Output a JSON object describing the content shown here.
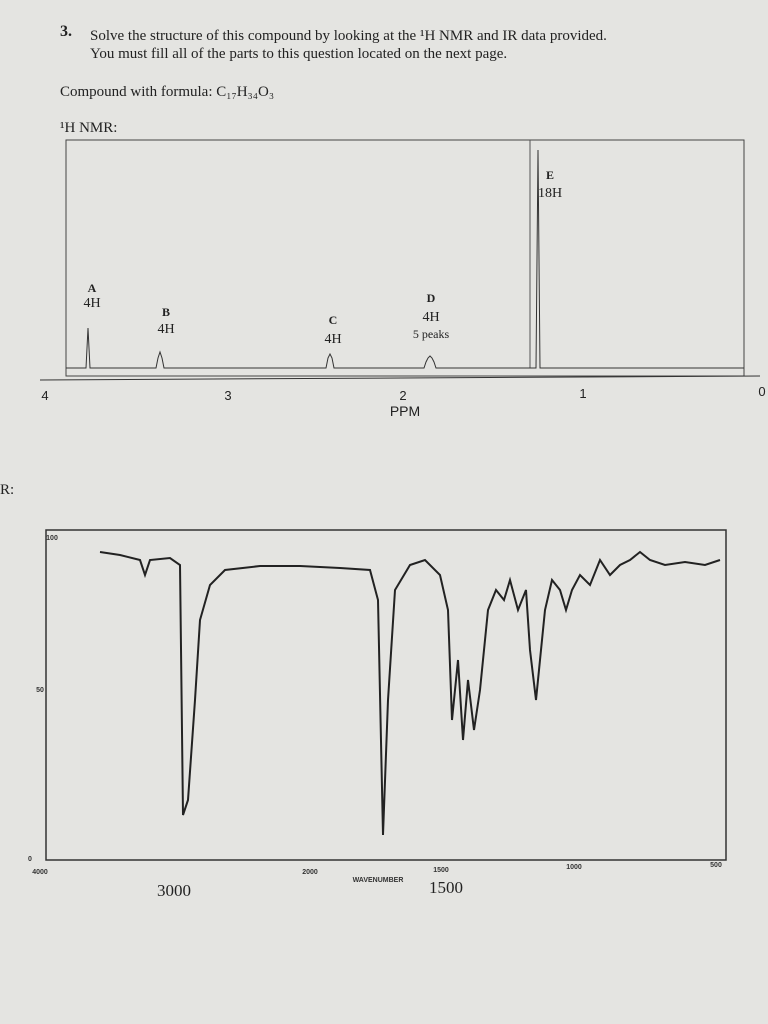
{
  "question": {
    "number": "3.",
    "lines": [
      "Solve the structure of this compound by looking at the ¹H NMR and IR data provided.",
      "You must fill all of the parts to this question located on the next page."
    ],
    "formula": "Compound with formula: C₁₇H₃₄O₃"
  },
  "nmr": {
    "title": "¹H NMR:",
    "peaks": [
      {
        "letter": "A",
        "integration": "4H"
      },
      {
        "letter": "B",
        "integration": "4H"
      },
      {
        "letter": "C",
        "integration": "4H"
      },
      {
        "letter": "D",
        "integration": "4H",
        "note": "5 peaks"
      },
      {
        "letter": "E",
        "integration": "18H"
      }
    ],
    "axis_ticks": [
      "4",
      "3",
      "2",
      "1",
      "0"
    ],
    "axis_label": "PPM"
  },
  "ir": {
    "title": "R:",
    "y_ticks": [
      "100",
      "50",
      "0"
    ],
    "x_ticks": [
      "4000",
      "2000",
      "1500",
      "1000",
      "500"
    ],
    "x_label": "WAVENUMBER",
    "handwritten": [
      "3000",
      "1500"
    ]
  }
}
